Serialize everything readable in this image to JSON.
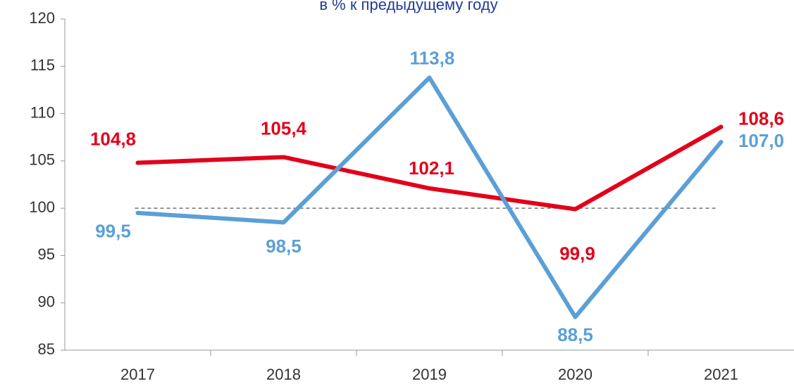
{
  "chart_data": {
    "type": "line",
    "title": "в % к предыдущему году",
    "categories": [
      "2017",
      "2018",
      "2019",
      "2020",
      "2021"
    ],
    "series": [
      {
        "color": "#e2001a",
        "values": [
          104.8,
          105.4,
          102.1,
          99.9,
          108.6
        ],
        "value_labels": [
          "104,8",
          "105,4",
          "102,1",
          "99,9",
          "108,6"
        ]
      },
      {
        "color": "#5b9fd6",
        "values": [
          99.5,
          98.5,
          113.8,
          88.5,
          107.0
        ],
        "value_labels": [
          "99,5",
          "98,5",
          "113,8",
          "88,5",
          "107,0"
        ]
      }
    ],
    "reference_line": 100,
    "ylim": [
      85,
      120
    ],
    "yticks": [
      85,
      90,
      95,
      100,
      105,
      110,
      115,
      120
    ]
  }
}
